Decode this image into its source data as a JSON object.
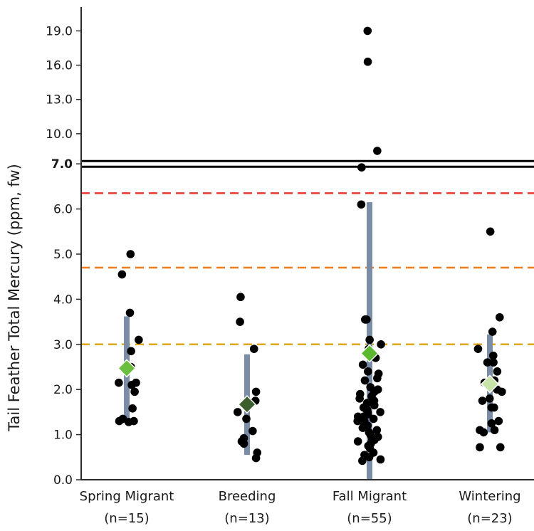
{
  "chart_data": {
    "type": "scatter",
    "ylabel": "Tail Feather Total Mercury (ppm, fw)",
    "y_ticks_lower": [
      "0.0",
      "1.0",
      "2.0",
      "3.0",
      "4.0",
      "5.0",
      "6.0"
    ],
    "y_tick_break": "7.0",
    "y_ticks_upper": [
      "10.0",
      "13.0",
      "16.0",
      "19.0"
    ],
    "scale_note": "y axis is broken at 7.0: 0-7 linear in lower section, 7-19 compressed in upper section",
    "categories": [
      {
        "label": "Spring Migrant",
        "n_label": "(n=15)"
      },
      {
        "label": "Breeding",
        "n_label": "(n=13)"
      },
      {
        "label": "Fall Migrant",
        "n_label": "(n=55)"
      },
      {
        "label": "Wintering",
        "n_label": "(n=23)"
      }
    ],
    "reference_lines": [
      {
        "value": 7.0,
        "style": "solid-double",
        "color": "#000000"
      },
      {
        "value": 6.35,
        "style": "dashed",
        "color": "#e8392f"
      },
      {
        "value": 4.7,
        "style": "dashed",
        "color": "#f07c1e"
      },
      {
        "value": 3.0,
        "style": "dashed",
        "color": "#e0a81c"
      }
    ],
    "series": [
      {
        "category": "Spring Migrant",
        "mean": 2.47,
        "range": [
          1.3,
          3.62
        ],
        "marker_color": "#6abf3f",
        "points": [
          5.0,
          4.55,
          3.7,
          3.1,
          2.85,
          2.5,
          2.15,
          2.15,
          2.1,
          1.95,
          1.58,
          1.35,
          1.3,
          1.3,
          1.28
        ]
      },
      {
        "category": "Breeding",
        "mean": 1.67,
        "range": [
          0.55,
          2.78
        ],
        "marker_color": "#3d5f2d",
        "points": [
          4.05,
          3.5,
          2.9,
          1.95,
          1.75,
          1.5,
          1.35,
          1.08,
          0.92,
          0.85,
          0.8,
          0.6,
          0.48
        ]
      },
      {
        "category": "Fall Migrant",
        "mean": 2.8,
        "range": [
          0.0,
          6.15
        ],
        "marker_color": "#5cb82f",
        "points": [
          19.0,
          16.3,
          8.5,
          7.05,
          6.1,
          3.55,
          3.55,
          3.1,
          3.0,
          2.9,
          2.7,
          2.55,
          2.4,
          2.35,
          2.25,
          2.2,
          2.05,
          2.0,
          1.95,
          1.9,
          1.85,
          1.8,
          1.75,
          1.7,
          1.65,
          1.6,
          1.55,
          1.55,
          1.5,
          1.5,
          1.45,
          1.4,
          1.4,
          1.35,
          1.35,
          1.3,
          1.3,
          1.25,
          1.2,
          1.15,
          1.1,
          1.05,
          1.0,
          0.95,
          0.9,
          0.88,
          0.85,
          0.8,
          0.75,
          0.7,
          0.6,
          0.55,
          0.5,
          0.45,
          0.42
        ]
      },
      {
        "category": "Wintering",
        "mean": 2.12,
        "range": [
          1.05,
          3.22
        ],
        "marker_color": "#c6e3a8",
        "points": [
          5.5,
          3.6,
          3.28,
          2.9,
          2.75,
          2.6,
          2.6,
          2.4,
          2.2,
          2.15,
          2.0,
          1.95,
          1.8,
          1.75,
          1.6,
          1.6,
          1.3,
          1.25,
          1.1,
          1.1,
          0.72,
          0.72,
          1.05
        ]
      }
    ],
    "range_bar_color": "#7b8da6",
    "point_color": "#000000"
  }
}
